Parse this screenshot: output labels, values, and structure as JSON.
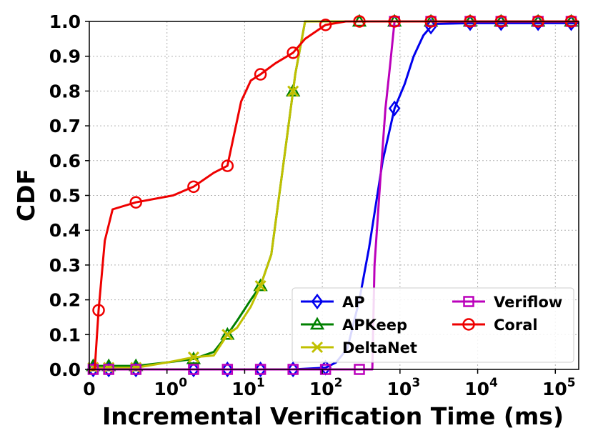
{
  "chart_data": {
    "type": "line",
    "xlabel": "Incremental Verification Time (ms)",
    "ylabel": "CDF",
    "x_scale": "symlog",
    "xlim": [
      0,
      200000
    ],
    "ylim": [
      0,
      1.0
    ],
    "grid": true,
    "legend_position": "lower-right",
    "legend_columns": 2,
    "y_ticks": [
      "0.0",
      "0.1",
      "0.2",
      "0.3",
      "0.4",
      "0.5",
      "0.6",
      "0.7",
      "0.8",
      "0.9",
      "1.0"
    ],
    "x_ticks": [
      {
        "value": 0,
        "base": "0",
        "exp": ""
      },
      {
        "value": 1,
        "base": "10",
        "exp": "0"
      },
      {
        "value": 10,
        "base": "10",
        "exp": "1"
      },
      {
        "value": 100,
        "base": "10",
        "exp": "2"
      },
      {
        "value": 1000,
        "base": "10",
        "exp": "3"
      },
      {
        "value": 10000,
        "base": "10",
        "exp": "4"
      },
      {
        "value": 100000,
        "base": "10",
        "exp": "5"
      }
    ],
    "series": [
      {
        "name": "AP",
        "color": "#0000ee",
        "marker": "diamond",
        "points": [
          [
            0.05,
            0
          ],
          [
            0.25,
            0
          ],
          [
            0.6,
            0
          ],
          [
            2.2,
            0
          ],
          [
            6,
            0
          ],
          [
            16,
            0
          ],
          [
            42,
            0
          ],
          [
            110,
            0.005
          ],
          [
            150,
            0.02
          ],
          [
            210,
            0.06
          ],
          [
            300,
            0.2
          ],
          [
            400,
            0.35
          ],
          [
            600,
            0.6
          ],
          [
            850,
            0.75
          ],
          [
            1150,
            0.82
          ],
          [
            1500,
            0.9
          ],
          [
            2000,
            0.96
          ],
          [
            2500,
            0.985
          ],
          [
            3000,
            0.993
          ],
          [
            8000,
            0.995
          ],
          [
            20000,
            0.995
          ],
          [
            60000,
            0.995
          ],
          [
            160000,
            0.995
          ],
          [
            200000,
            0.995
          ]
        ],
        "marker_x": [
          0.05,
          0.25,
          0.6,
          2.2,
          6,
          16,
          42,
          110,
          850,
          2500,
          8000,
          20000,
          60000,
          160000
        ]
      },
      {
        "name": "APKeep",
        "color": "#008000",
        "marker": "triangle",
        "points": [
          [
            0.05,
            0.01
          ],
          [
            0.25,
            0.01
          ],
          [
            0.6,
            0.01
          ],
          [
            1,
            0.02
          ],
          [
            2.2,
            0.03
          ],
          [
            4,
            0.05
          ],
          [
            6,
            0.1
          ],
          [
            8,
            0.14
          ],
          [
            12,
            0.2
          ],
          [
            16,
            0.24
          ],
          [
            22,
            0.33
          ],
          [
            32,
            0.6
          ],
          [
            45,
            0.85
          ],
          [
            60,
            1.0
          ],
          [
            200000,
            1.0
          ]
        ],
        "marker_x": [
          0.05,
          0.25,
          0.6,
          2.2,
          6,
          16,
          42,
          300,
          850,
          2500,
          8000,
          20000,
          60000,
          160000
        ]
      },
      {
        "name": "DeltaNet",
        "color": "#c0c000",
        "marker": "x",
        "points": [
          [
            0.05,
            0.005
          ],
          [
            0.25,
            0.005
          ],
          [
            0.6,
            0.005
          ],
          [
            1,
            0.02
          ],
          [
            2.2,
            0.035
          ],
          [
            4,
            0.04
          ],
          [
            6,
            0.1
          ],
          [
            8,
            0.12
          ],
          [
            12,
            0.18
          ],
          [
            16,
            0.24
          ],
          [
            22,
            0.33
          ],
          [
            32,
            0.6
          ],
          [
            45,
            0.85
          ],
          [
            60,
            1.0
          ],
          [
            200000,
            1.0
          ]
        ],
        "marker_x": [
          0.05,
          0.25,
          0.6,
          2.2,
          6,
          16,
          42
        ]
      },
      {
        "name": "Veriflow",
        "color": "#bb00bb",
        "marker": "square",
        "points": [
          [
            0.05,
            0
          ],
          [
            0.25,
            0
          ],
          [
            0.6,
            0
          ],
          [
            2.2,
            0
          ],
          [
            6,
            0
          ],
          [
            16,
            0
          ],
          [
            42,
            0
          ],
          [
            110,
            0
          ],
          [
            300,
            0
          ],
          [
            440,
            0
          ],
          [
            470,
            0.3
          ],
          [
            560,
            0.55
          ],
          [
            650,
            0.75
          ],
          [
            750,
            0.88
          ],
          [
            850,
            1.0
          ],
          [
            200000,
            1.0
          ]
        ],
        "marker_x": [
          0.05,
          0.25,
          0.6,
          2.2,
          6,
          16,
          42,
          110,
          300,
          850,
          2500,
          8000,
          20000,
          60000,
          160000
        ]
      },
      {
        "name": "Coral",
        "color": "#ee0000",
        "marker": "circle",
        "points": [
          [
            0,
            0
          ],
          [
            0.07,
            0
          ],
          [
            0.12,
            0.17
          ],
          [
            0.2,
            0.37
          ],
          [
            0.3,
            0.46
          ],
          [
            0.6,
            0.48
          ],
          [
            1.2,
            0.5
          ],
          [
            2.2,
            0.525
          ],
          [
            4,
            0.565
          ],
          [
            6,
            0.585
          ],
          [
            9,
            0.77
          ],
          [
            12,
            0.83
          ],
          [
            16,
            0.848
          ],
          [
            25,
            0.88
          ],
          [
            42,
            0.91
          ],
          [
            60,
            0.95
          ],
          [
            110,
            0.99
          ],
          [
            200,
            1.0
          ],
          [
            200000,
            1.0
          ]
        ],
        "marker_x": [
          0.12,
          0.6,
          2.2,
          6,
          16,
          42,
          110,
          300,
          850,
          2500,
          8000,
          20000,
          60000,
          160000
        ]
      }
    ]
  }
}
